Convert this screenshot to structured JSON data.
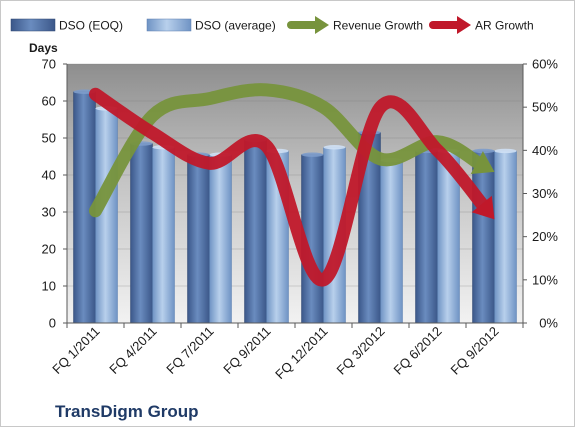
{
  "chart_data": {
    "type": "bar",
    "categories": [
      "FQ 1/2011",
      "FQ 4/2011",
      "FQ 7/2011",
      "FQ 9/2011",
      "FQ 12/2011",
      "FQ 3/2012",
      "FQ 6/2012",
      "FQ 9/2012"
    ],
    "series": [
      {
        "name": "DSO (EOQ)",
        "kind": "bar",
        "axis": "left",
        "color": "#4f6e9e",
        "values": [
          62.5,
          48.5,
          45.5,
          49.5,
          45.5,
          51.5,
          46.5,
          46.5
        ]
      },
      {
        "name": "DSO (average)",
        "kind": "bar",
        "axis": "left",
        "color": "#8fb0d8",
        "values": [
          58,
          47.5,
          45.5,
          46.5,
          47.5,
          44,
          46.5,
          46.5
        ]
      },
      {
        "name": "Revenue Growth",
        "kind": "line",
        "axis": "right",
        "color": "#77933c",
        "values": [
          26,
          48,
          52,
          54,
          50,
          38,
          42,
          35
        ]
      },
      {
        "name": "AR Growth",
        "kind": "line",
        "axis": "right",
        "color": "#c0182a",
        "values": [
          53,
          44,
          37,
          41,
          10,
          50,
          40,
          24
        ]
      }
    ],
    "ylabel": "Days",
    "ylim": [
      0,
      70
    ],
    "yticks": [
      "0",
      "10",
      "20",
      "30",
      "40",
      "50",
      "60",
      "70"
    ],
    "y2lim": [
      0,
      0.6
    ],
    "y2ticks": [
      "0%",
      "10%",
      "20%",
      "30%",
      "40%",
      "50%",
      "60%"
    ],
    "legend_position": "top",
    "grid": true,
    "company": "TransDigm Group"
  }
}
